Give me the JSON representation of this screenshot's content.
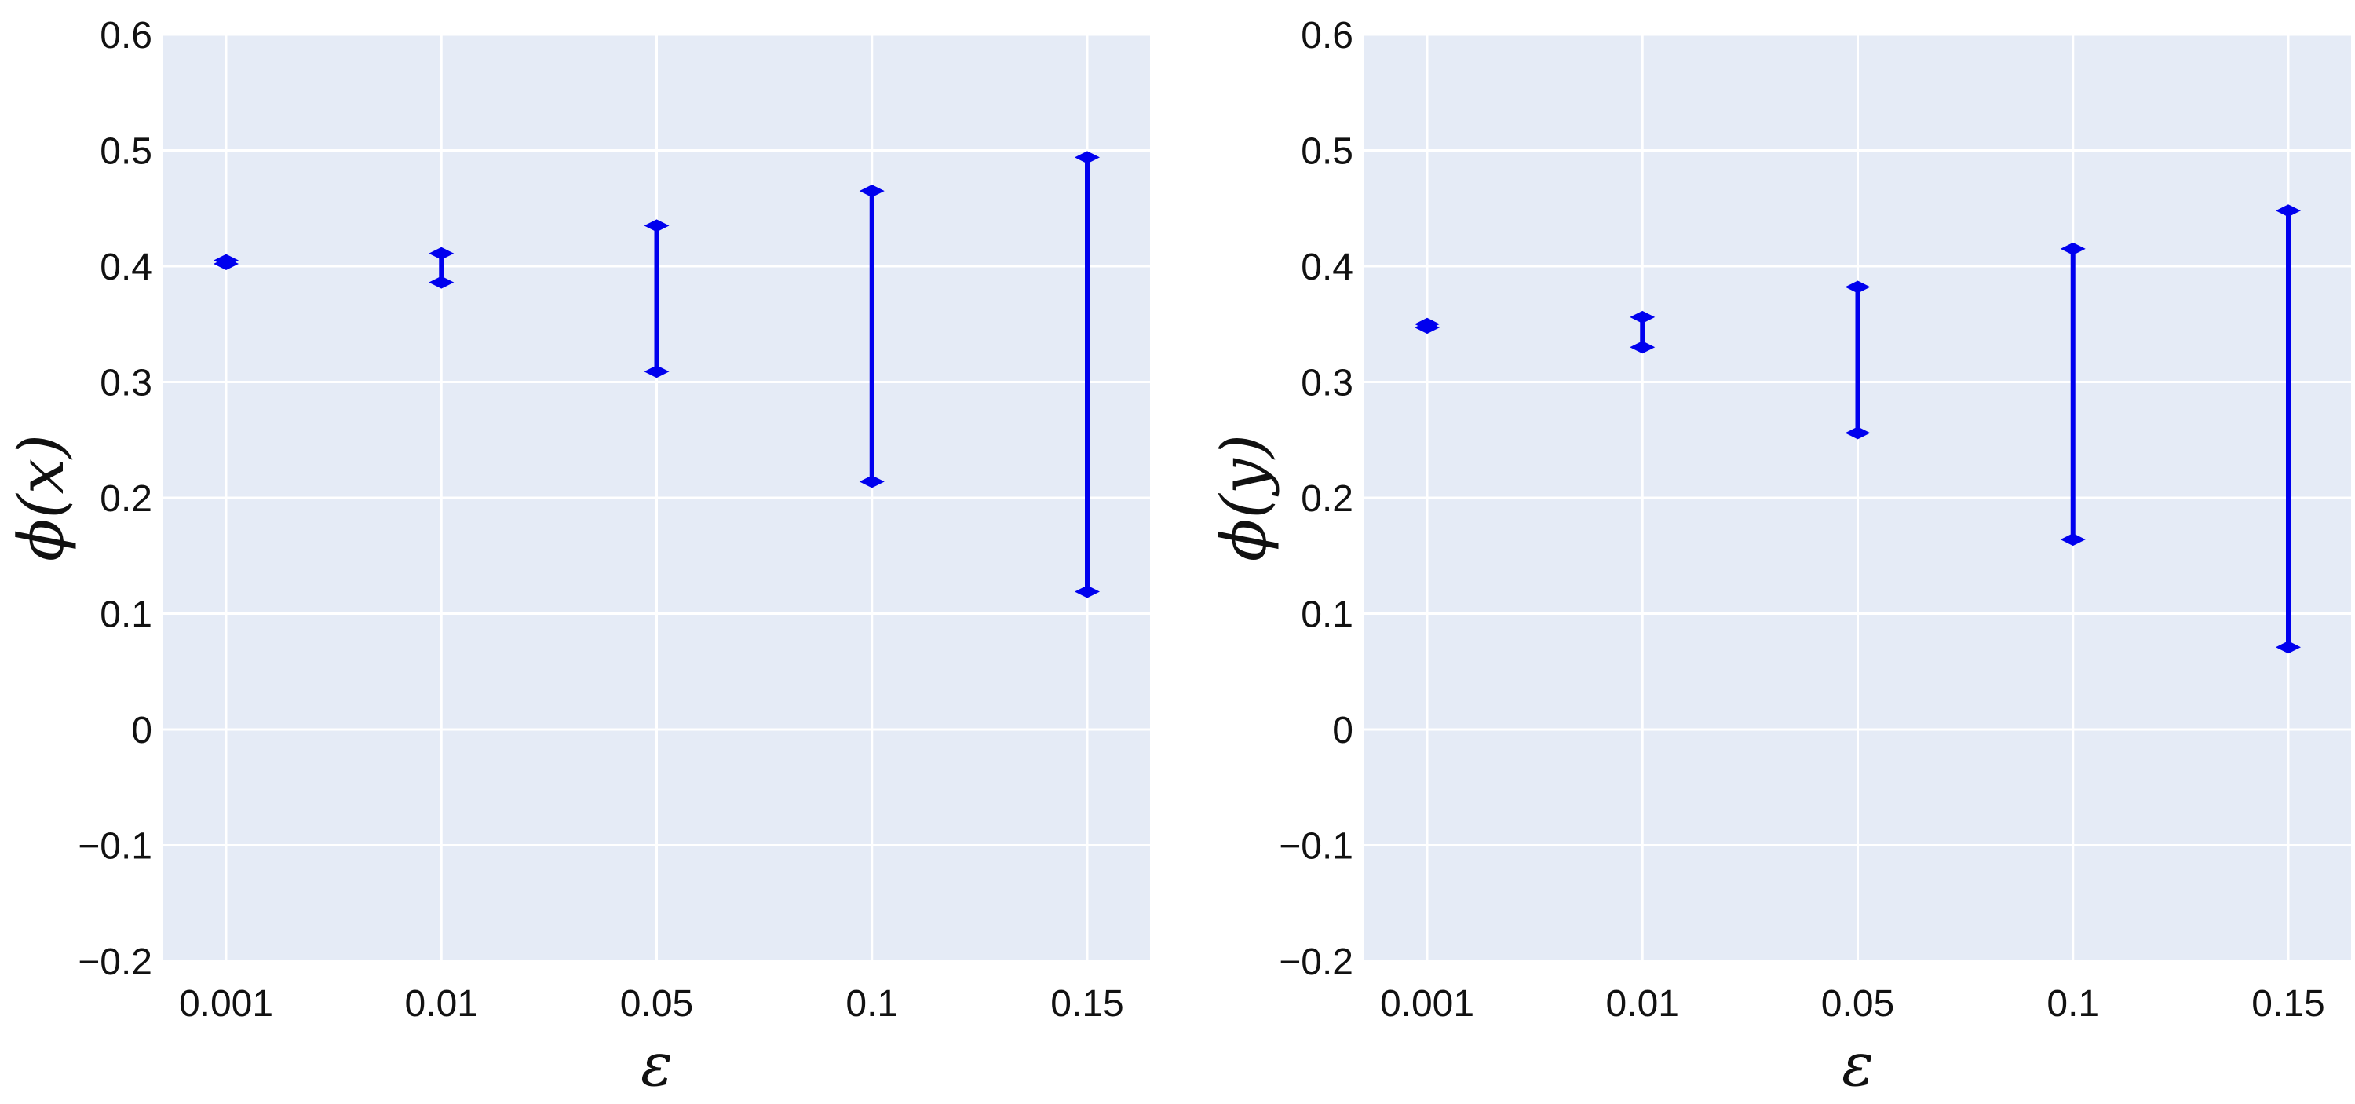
{
  "colors": {
    "plot_background": "#E5EBF6",
    "grid": "#FFFFFF",
    "errorbar": "#0000EE",
    "text": "#111111"
  },
  "chart_data": [
    {
      "type": "errorbar",
      "xlabel": "ε",
      "ylabel": "ϕ(x)",
      "categories": [
        "0.001",
        "0.01",
        "0.05",
        "0.1",
        "0.15"
      ],
      "lower": [
        0.402,
        0.386,
        0.309,
        0.214,
        0.119
      ],
      "upper": [
        0.405,
        0.411,
        0.435,
        0.465,
        0.494
      ],
      "ylim": [
        -0.2,
        0.6
      ],
      "yticks": [
        -0.2,
        -0.1,
        0,
        0.1,
        0.2,
        0.3,
        0.4,
        0.5,
        0.6
      ],
      "ytick_labels": [
        "−0.2",
        "−0.1",
        "0",
        "0.1",
        "0.2",
        "0.3",
        "0.4",
        "0.5",
        "0.6"
      ],
      "grid": true
    },
    {
      "type": "errorbar",
      "xlabel": "ε",
      "ylabel": "ϕ(y)",
      "categories": [
        "0.001",
        "0.01",
        "0.05",
        "0.1",
        "0.15"
      ],
      "lower": [
        0.347,
        0.33,
        0.256,
        0.164,
        0.071
      ],
      "upper": [
        0.35,
        0.356,
        0.382,
        0.415,
        0.448
      ],
      "ylim": [
        -0.2,
        0.6
      ],
      "yticks": [
        -0.2,
        -0.1,
        0,
        0.1,
        0.2,
        0.3,
        0.4,
        0.5,
        0.6
      ],
      "ytick_labels": [
        "−0.2",
        "−0.1",
        "0",
        "0.1",
        "0.2",
        "0.3",
        "0.4",
        "0.5",
        "0.6"
      ],
      "grid": true
    }
  ]
}
